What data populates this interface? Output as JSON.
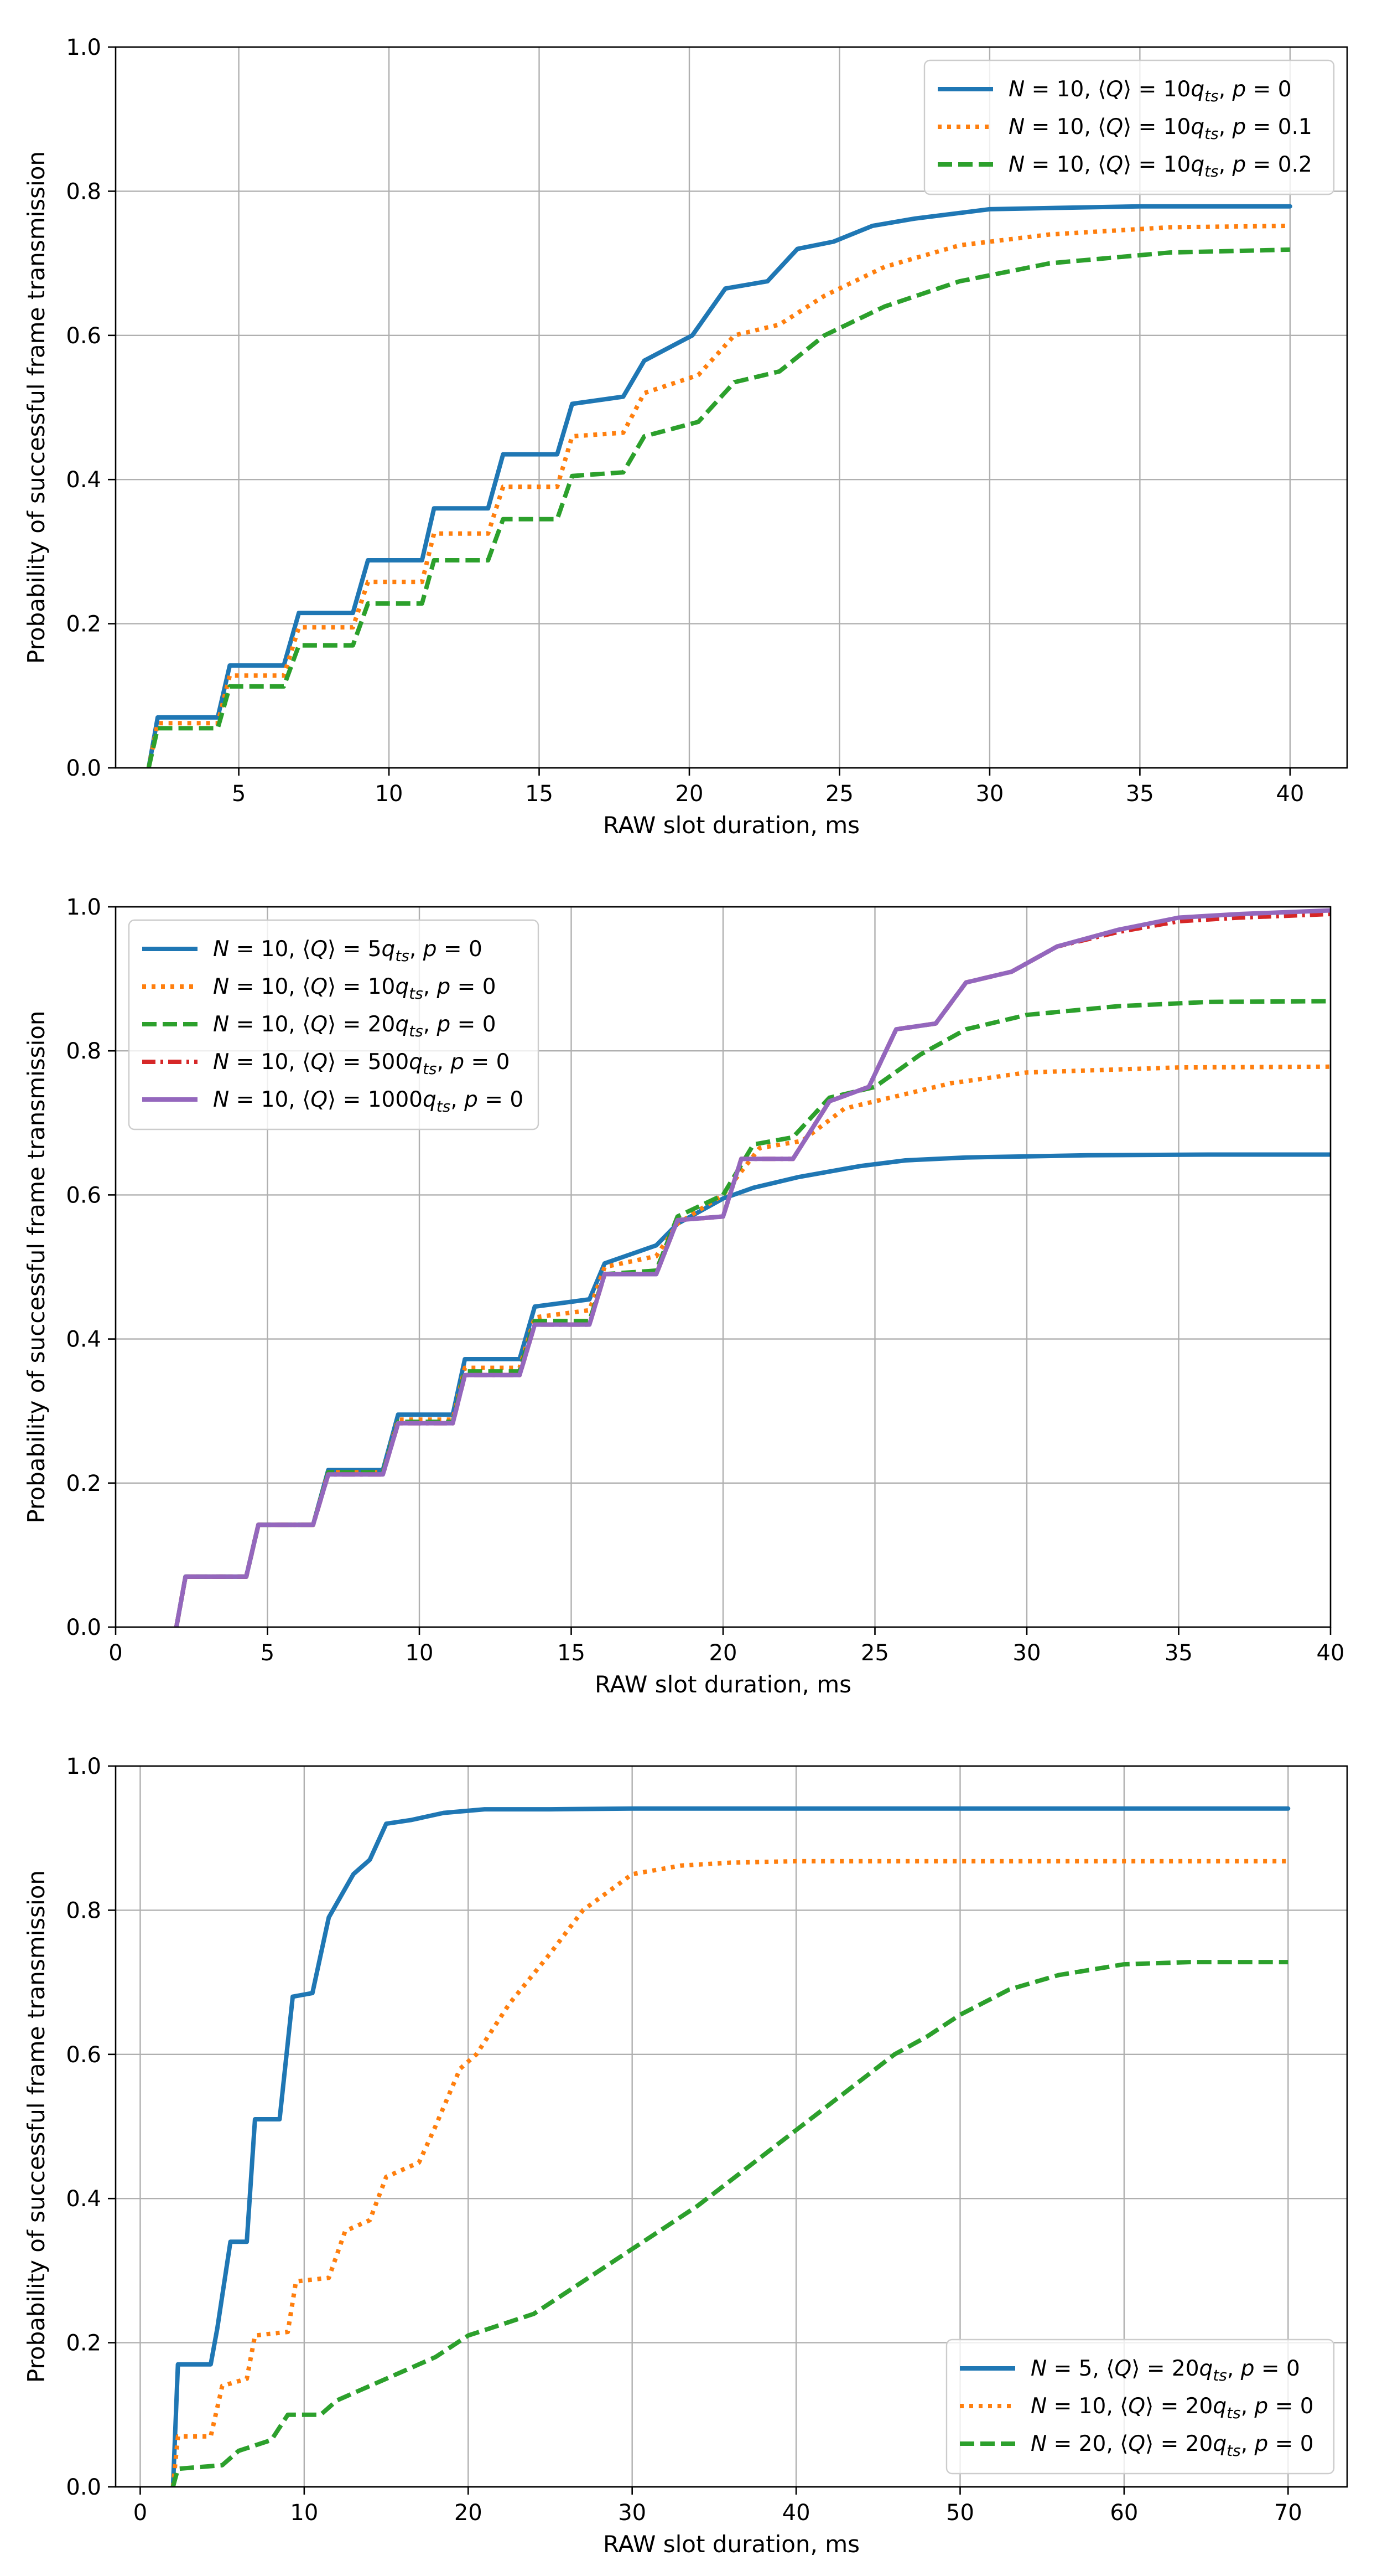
{
  "chart_data": [
    {
      "type": "line",
      "xlabel": "RAW slot duration, ms",
      "ylabel": "Probability of successful frame transmission",
      "xlim": [
        0.9,
        41.9
      ],
      "ylim": [
        0,
        1
      ],
      "xticks": [
        5,
        10,
        15,
        20,
        25,
        30,
        35,
        40
      ],
      "yticks": [
        0.0,
        0.2,
        0.4,
        0.6,
        0.8,
        1.0
      ],
      "xtick_labels": [
        "5",
        "10",
        "15",
        "20",
        "25",
        "30",
        "35",
        "40"
      ],
      "ytick_labels": [
        "0.0",
        "0.2",
        "0.4",
        "0.6",
        "0.8",
        "1.0"
      ],
      "grid": true,
      "legend_position": "top-right",
      "series": [
        {
          "name": "N = 10, ⟨Q⟩ = 10q_ts, p = 0",
          "legend": {
            "n": "10",
            "q": "10",
            "p": "0"
          },
          "color": "#1f77b4",
          "style": "solid",
          "x": [
            2,
            2.3,
            4.3,
            4.7,
            6.5,
            7.0,
            8.8,
            9.3,
            11.1,
            11.5,
            13.3,
            13.8,
            15.6,
            16.1,
            17.8,
            18.5,
            20.1,
            21.2,
            22.6,
            23.6,
            24.8,
            26.1,
            27.5,
            30,
            35,
            40
          ],
          "y": [
            0,
            0.07,
            0.07,
            0.142,
            0.142,
            0.215,
            0.215,
            0.288,
            0.288,
            0.36,
            0.36,
            0.435,
            0.435,
            0.505,
            0.515,
            0.565,
            0.6,
            0.665,
            0.675,
            0.72,
            0.73,
            0.752,
            0.762,
            0.775,
            0.779,
            0.779
          ]
        },
        {
          "name": "N = 10, ⟨Q⟩ = 10q_ts, p = 0.1",
          "legend": {
            "n": "10",
            "q": "10",
            "p": "0.1"
          },
          "color": "#ff7f0e",
          "style": "dotted",
          "x": [
            2,
            2.3,
            4.3,
            4.7,
            6.5,
            7.0,
            8.8,
            9.3,
            11.1,
            11.5,
            13.3,
            13.8,
            15.6,
            16.1,
            17.8,
            18.5,
            20.3,
            21.5,
            23.0,
            24.5,
            26.5,
            29,
            32,
            36,
            40
          ],
          "y": [
            0,
            0.062,
            0.062,
            0.128,
            0.128,
            0.195,
            0.195,
            0.258,
            0.258,
            0.325,
            0.325,
            0.39,
            0.39,
            0.46,
            0.465,
            0.52,
            0.545,
            0.6,
            0.615,
            0.655,
            0.695,
            0.725,
            0.74,
            0.75,
            0.752
          ]
        },
        {
          "name": "N = 10, ⟨Q⟩ = 10q_ts, p = 0.2",
          "legend": {
            "n": "10",
            "q": "10",
            "p": "0.2"
          },
          "color": "#2ca02c",
          "style": "dashed",
          "x": [
            2,
            2.3,
            4.3,
            4.7,
            6.5,
            7.0,
            8.8,
            9.3,
            11.1,
            11.5,
            13.3,
            13.8,
            15.6,
            16.1,
            17.8,
            18.5,
            20.3,
            21.5,
            23.0,
            24.5,
            26.5,
            29,
            32,
            36,
            40
          ],
          "y": [
            0,
            0.055,
            0.055,
            0.113,
            0.113,
            0.17,
            0.17,
            0.228,
            0.228,
            0.288,
            0.288,
            0.345,
            0.345,
            0.405,
            0.41,
            0.46,
            0.48,
            0.535,
            0.55,
            0.6,
            0.64,
            0.675,
            0.7,
            0.715,
            0.719
          ]
        }
      ]
    },
    {
      "type": "line",
      "xlabel": "RAW slot duration, ms",
      "ylabel": "Probability of successful frame transmission",
      "xlim": [
        0,
        40
      ],
      "ylim": [
        0,
        1
      ],
      "xticks": [
        0,
        5,
        10,
        15,
        20,
        25,
        30,
        35,
        40
      ],
      "yticks": [
        0.0,
        0.2,
        0.4,
        0.6,
        0.8,
        1.0
      ],
      "xtick_labels": [
        "0",
        "5",
        "10",
        "15",
        "20",
        "25",
        "30",
        "35",
        "40"
      ],
      "ytick_labels": [
        "0.0",
        "0.2",
        "0.4",
        "0.6",
        "0.8",
        "1.0"
      ],
      "grid": true,
      "legend_position": "top-left",
      "series": [
        {
          "name": "N = 10, ⟨Q⟩ = 5q_ts, p = 0",
          "legend": {
            "n": "10",
            "q": "5",
            "p": "0"
          },
          "color": "#1f77b4",
          "style": "solid",
          "x": [
            2,
            2.3,
            4.3,
            4.7,
            6.5,
            7.0,
            8.8,
            9.3,
            11.1,
            11.5,
            13.3,
            13.8,
            15.6,
            16.1,
            17.8,
            18.5,
            20.0,
            21.0,
            22.5,
            24.5,
            26,
            28,
            32,
            36,
            40
          ],
          "y": [
            0,
            0.07,
            0.07,
            0.142,
            0.142,
            0.218,
            0.218,
            0.295,
            0.295,
            0.372,
            0.372,
            0.445,
            0.455,
            0.505,
            0.53,
            0.56,
            0.595,
            0.61,
            0.625,
            0.64,
            0.648,
            0.652,
            0.655,
            0.656,
            0.656
          ]
        },
        {
          "name": "N = 10, ⟨Q⟩ = 10q_ts, p = 0",
          "legend": {
            "n": "10",
            "q": "10",
            "p": "0"
          },
          "color": "#ff7f0e",
          "style": "dotted",
          "x": [
            2,
            2.3,
            4.3,
            4.7,
            6.5,
            7.0,
            8.8,
            9.3,
            11.1,
            11.5,
            13.3,
            13.8,
            15.6,
            16.1,
            17.8,
            18.5,
            20.0,
            21.2,
            22.6,
            24.0,
            25.5,
            27.5,
            30,
            35,
            40
          ],
          "y": [
            0,
            0.07,
            0.07,
            0.142,
            0.142,
            0.215,
            0.215,
            0.288,
            0.288,
            0.36,
            0.36,
            0.43,
            0.44,
            0.5,
            0.515,
            0.56,
            0.6,
            0.665,
            0.675,
            0.72,
            0.735,
            0.755,
            0.77,
            0.777,
            0.778
          ]
        },
        {
          "name": "N = 10, ⟨Q⟩ = 20q_ts, p = 0",
          "legend": {
            "n": "10",
            "q": "20",
            "p": "0"
          },
          "color": "#2ca02c",
          "style": "dashed",
          "x": [
            2,
            2.3,
            4.3,
            4.7,
            6.5,
            7.0,
            8.8,
            9.3,
            11.1,
            11.5,
            13.3,
            13.8,
            15.6,
            16.1,
            17.8,
            18.5,
            20.0,
            21.0,
            22.3,
            23.5,
            25.0,
            26.5,
            28,
            30,
            33,
            36,
            40
          ],
          "y": [
            0,
            0.07,
            0.07,
            0.142,
            0.142,
            0.215,
            0.215,
            0.285,
            0.285,
            0.355,
            0.355,
            0.425,
            0.425,
            0.49,
            0.495,
            0.57,
            0.6,
            0.67,
            0.68,
            0.735,
            0.75,
            0.795,
            0.83,
            0.85,
            0.862,
            0.868,
            0.869
          ]
        },
        {
          "name": "N = 10, ⟨Q⟩ = 500q_ts, p = 0",
          "legend": {
            "n": "10",
            "q": "500",
            "p": "0"
          },
          "color": "#d62728",
          "style": "dashdot",
          "x": [
            2,
            2.3,
            4.3,
            4.7,
            6.5,
            7.0,
            8.8,
            9.3,
            11.1,
            11.5,
            13.3,
            13.8,
            15.6,
            16.1,
            17.8,
            18.5,
            20.0,
            20.6,
            22.3,
            23.5,
            24.8,
            25.7,
            27,
            28,
            29.5,
            31,
            33,
            35,
            37,
            40
          ],
          "y": [
            0,
            0.07,
            0.07,
            0.142,
            0.142,
            0.212,
            0.212,
            0.283,
            0.283,
            0.35,
            0.35,
            0.42,
            0.42,
            0.49,
            0.49,
            0.565,
            0.57,
            0.65,
            0.65,
            0.73,
            0.75,
            0.83,
            0.838,
            0.895,
            0.91,
            0.945,
            0.965,
            0.98,
            0.985,
            0.99
          ]
        },
        {
          "name": "N = 10, ⟨Q⟩ = 1000q_ts, p = 0",
          "legend": {
            "n": "10",
            "q": "1000",
            "p": "0"
          },
          "color": "#9467bd",
          "style": "solid",
          "x": [
            2,
            2.3,
            4.3,
            4.7,
            6.5,
            7.0,
            8.8,
            9.3,
            11.1,
            11.5,
            13.3,
            13.8,
            15.6,
            16.1,
            17.8,
            18.5,
            20.0,
            20.6,
            22.3,
            23.5,
            24.8,
            25.7,
            27,
            28,
            29.5,
            31,
            33,
            35,
            37,
            40
          ],
          "y": [
            0,
            0.07,
            0.07,
            0.142,
            0.142,
            0.212,
            0.212,
            0.283,
            0.283,
            0.35,
            0.35,
            0.42,
            0.42,
            0.49,
            0.49,
            0.565,
            0.57,
            0.65,
            0.65,
            0.73,
            0.75,
            0.83,
            0.838,
            0.895,
            0.91,
            0.945,
            0.968,
            0.985,
            0.99,
            0.995
          ]
        }
      ]
    },
    {
      "type": "line",
      "xlabel": "RAW slot duration, ms",
      "ylabel": "Probability of successful frame transmission",
      "xlim": [
        -1.5,
        73.6
      ],
      "ylim": [
        0,
        1
      ],
      "xticks": [
        0,
        10,
        20,
        30,
        40,
        50,
        60,
        70
      ],
      "yticks": [
        0.0,
        0.2,
        0.4,
        0.6,
        0.8,
        1.0
      ],
      "xtick_labels": [
        "0",
        "10",
        "20",
        "30",
        "40",
        "50",
        "60",
        "70"
      ],
      "ytick_labels": [
        "0.0",
        "0.2",
        "0.4",
        "0.6",
        "0.8",
        "1.0"
      ],
      "grid": true,
      "legend_position": "bottom-right",
      "series": [
        {
          "name": "N = 5, ⟨Q⟩ = 20q_ts, p = 0",
          "legend": {
            "n": "5",
            "q": "20",
            "p": "0"
          },
          "color": "#1f77b4",
          "style": "solid",
          "x": [
            2,
            2.3,
            4.3,
            4.7,
            5.5,
            6.5,
            7.0,
            8.5,
            9.3,
            10.5,
            11.5,
            13.0,
            14.0,
            15.0,
            16.5,
            18.5,
            21,
            25,
            30,
            40,
            50,
            60,
            70
          ],
          "y": [
            0,
            0.17,
            0.17,
            0.22,
            0.34,
            0.34,
            0.51,
            0.51,
            0.68,
            0.685,
            0.79,
            0.85,
            0.87,
            0.92,
            0.925,
            0.935,
            0.94,
            0.94,
            0.941,
            0.941,
            0.941,
            0.941,
            0.941
          ]
        },
        {
          "name": "N = 10, ⟨Q⟩ = 20q_ts, p = 0",
          "legend": {
            "n": "10",
            "q": "20",
            "p": "0"
          },
          "color": "#ff7f0e",
          "style": "dotted",
          "x": [
            2,
            2.3,
            4.3,
            5,
            6.5,
            7.0,
            9.0,
            9.5,
            11.5,
            12.5,
            14.0,
            15.0,
            17.0,
            18.0,
            19.5,
            20.5,
            22.5,
            25,
            27,
            30,
            33,
            36,
            40,
            50,
            60,
            70
          ],
          "y": [
            0,
            0.07,
            0.07,
            0.14,
            0.15,
            0.21,
            0.215,
            0.285,
            0.29,
            0.355,
            0.37,
            0.43,
            0.45,
            0.5,
            0.58,
            0.6,
            0.67,
            0.74,
            0.8,
            0.85,
            0.862,
            0.866,
            0.868,
            0.868,
            0.868,
            0.868
          ]
        },
        {
          "name": "N = 20, ⟨Q⟩ = 20q_ts, p = 0",
          "legend": {
            "n": "20",
            "q": "20",
            "p": "0"
          },
          "color": "#2ca02c",
          "style": "dashed",
          "x": [
            2,
            2.3,
            5,
            6,
            8,
            9,
            11,
            12,
            14,
            16,
            18,
            20,
            22,
            24,
            26,
            28,
            30,
            32,
            34,
            36,
            38,
            40,
            42,
            44,
            46,
            48,
            50,
            53,
            56,
            60,
            64,
            70
          ],
          "y": [
            0,
            0.025,
            0.03,
            0.05,
            0.065,
            0.1,
            0.1,
            0.12,
            0.14,
            0.16,
            0.18,
            0.21,
            0.225,
            0.24,
            0.27,
            0.3,
            0.33,
            0.36,
            0.39,
            0.425,
            0.46,
            0.495,
            0.53,
            0.565,
            0.6,
            0.625,
            0.655,
            0.69,
            0.71,
            0.725,
            0.728,
            0.728
          ]
        }
      ]
    }
  ]
}
